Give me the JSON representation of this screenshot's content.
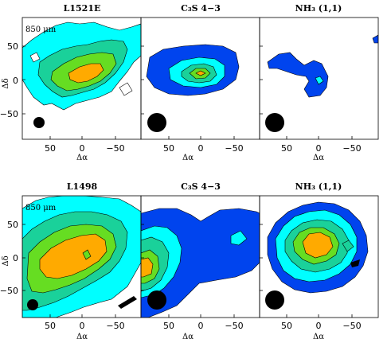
{
  "colors": {
    "level1": "#00ffff",
    "level2_blue": "#0044ee",
    "level3": "#1ad19a",
    "level4": "#66dd22",
    "level5": "#ffaa00",
    "beam": "#000000"
  },
  "axes": {
    "x_label": "Δα",
    "y_label": "Δδ",
    "x_ticks": [
      "50",
      "0",
      "−50"
    ],
    "y_ticks": [
      "50",
      "0",
      "−50"
    ]
  },
  "rows": [
    {
      "panels": [
        {
          "title": "L1521E",
          "band_label": "850 μm",
          "kind": "dust1"
        },
        {
          "title": "C₃S 4−3",
          "kind": "c3s1"
        },
        {
          "title": "NH₃ (1,1)",
          "kind": "nh3a"
        }
      ]
    },
    {
      "panels": [
        {
          "title": "L1498",
          "band_label": "850 μm",
          "kind": "dust2"
        },
        {
          "title": "C₃S 4−3",
          "kind": "c3s2"
        },
        {
          "title": "NH₃ (1,1)",
          "kind": "nh3b"
        }
      ]
    }
  ]
}
